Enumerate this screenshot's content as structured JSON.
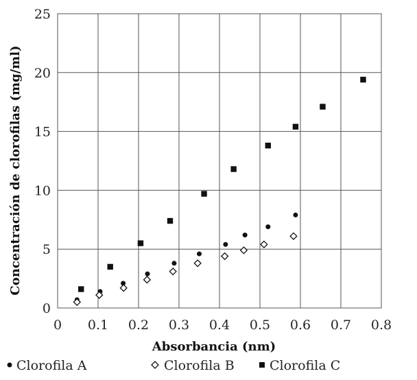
{
  "chart_data": {
    "type": "scatter",
    "xlabel": "Absorbancia (nm)",
    "ylabel": "Concentración de clorofilas (mg/ml)",
    "xlim": [
      0,
      0.8
    ],
    "ylim": [
      0,
      25
    ],
    "x_ticks": [
      "0",
      "0.1",
      "0.2",
      "0.3",
      "0.4",
      "0.5",
      "0.6",
      "0.7",
      "0.8"
    ],
    "y_ticks": [
      "0",
      "5",
      "10",
      "15",
      "20",
      "25"
    ],
    "grid": true,
    "legend_position": "bottom",
    "series": [
      {
        "name": "Clorofila A",
        "marker": "filled-circle",
        "color": "#111111",
        "points": [
          [
            0.048,
            0.7
          ],
          [
            0.105,
            1.4
          ],
          [
            0.162,
            2.1
          ],
          [
            0.222,
            2.9
          ],
          [
            0.288,
            3.8
          ],
          [
            0.35,
            4.6
          ],
          [
            0.415,
            5.4
          ],
          [
            0.463,
            6.2
          ],
          [
            0.52,
            6.9
          ],
          [
            0.588,
            7.9
          ]
        ]
      },
      {
        "name": "Clorofila B",
        "marker": "open-diamond",
        "color": "#111111",
        "points": [
          [
            0.048,
            0.5
          ],
          [
            0.103,
            1.1
          ],
          [
            0.163,
            1.7
          ],
          [
            0.221,
            2.4
          ],
          [
            0.285,
            3.1
          ],
          [
            0.346,
            3.8
          ],
          [
            0.413,
            4.4
          ],
          [
            0.46,
            4.9
          ],
          [
            0.51,
            5.4
          ],
          [
            0.583,
            6.1
          ]
        ]
      },
      {
        "name": "Clorofila C",
        "marker": "filled-square",
        "color": "#111111",
        "points": [
          [
            0.058,
            1.6
          ],
          [
            0.13,
            3.5
          ],
          [
            0.205,
            5.5
          ],
          [
            0.278,
            7.4
          ],
          [
            0.362,
            9.7
          ],
          [
            0.435,
            11.8
          ],
          [
            0.52,
            13.8
          ],
          [
            0.588,
            15.4
          ],
          [
            0.655,
            17.1
          ],
          [
            0.755,
            19.4
          ]
        ]
      }
    ]
  }
}
